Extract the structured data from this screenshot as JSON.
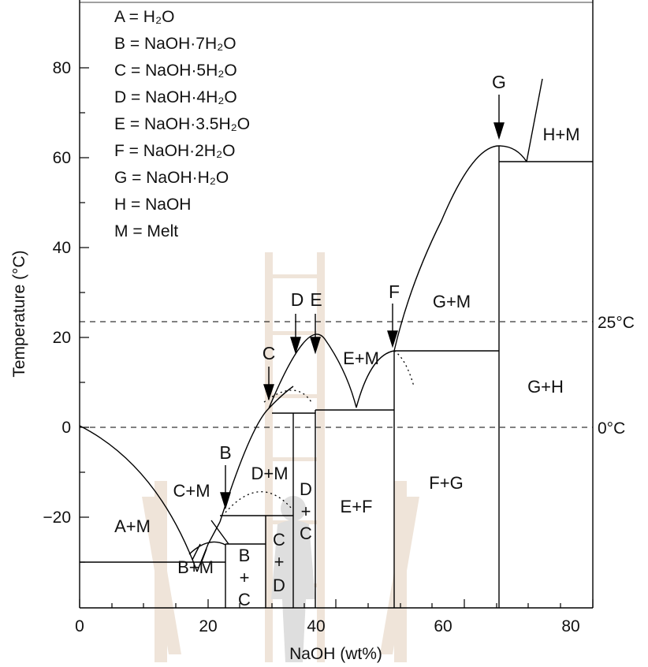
{
  "axes": {
    "xlabel": "NaOH (wt%)",
    "ylabel": "Temperature (°C)",
    "xticks": [
      "0",
      "20",
      "40",
      "60",
      "80"
    ],
    "yticks": [
      "80",
      "60",
      "40",
      "20",
      "0",
      "−20"
    ]
  },
  "legend": [
    "A = H₂O",
    "B = NaOH·7H₂O",
    "C = NaOH·5H₂O",
    "D = NaOH·4H₂O",
    "E = NaOH·3.5H₂O",
    "F = NaOH·2H₂O",
    "G = NaOH·H₂O",
    "H = NaOH",
    "M = Melt"
  ],
  "reference_lines": {
    "upper": "25°C",
    "lower": "0°C"
  },
  "compound_markers": {
    "B": "B",
    "C": "C",
    "D": "D",
    "E": "E",
    "F": "F",
    "G": "G"
  },
  "regions": {
    "a_m": "A+M",
    "b_m": "B+M",
    "c_m": "C+M",
    "d_m": "D+M",
    "e_m": "E+M",
    "g_m": "G+M",
    "h_m": "H+M",
    "e_f": "E+F",
    "f_g": "F+G",
    "g_h": "G+H",
    "b_c": [
      "B",
      "+",
      "C"
    ],
    "c_d": [
      "C",
      "+",
      "D"
    ],
    "d_c": [
      "D",
      "+",
      "C"
    ]
  },
  "colors": {
    "line": "#000000",
    "watermark": "#c9a27a",
    "watermark_figure": "#8a8a8a"
  }
}
